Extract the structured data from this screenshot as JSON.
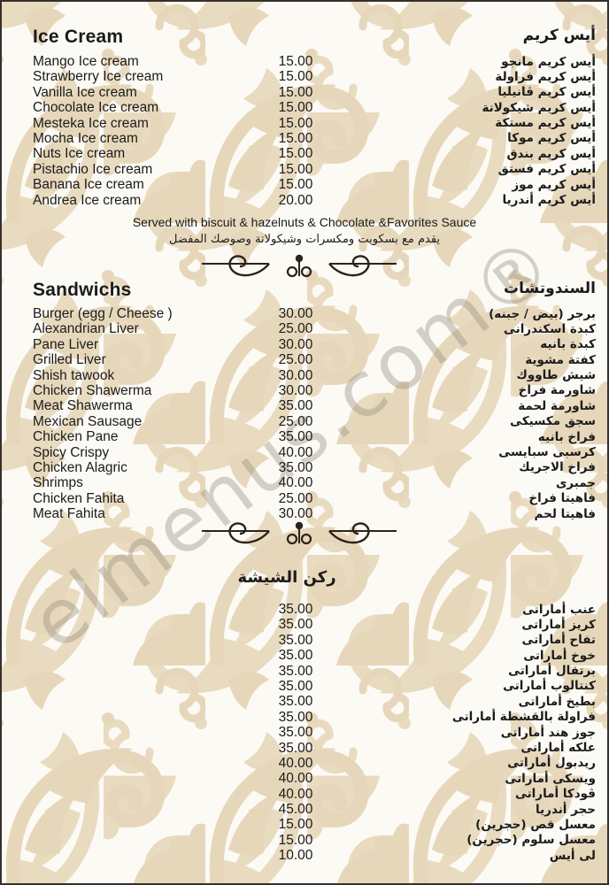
{
  "page": {
    "watermark": "elmenus.com®"
  },
  "colors": {
    "background": "#fcfaf5",
    "pattern_beige": "#e7d7ba",
    "text": "#1b1b1b",
    "ornament": "#2b231b",
    "watermark_gray": "#968e82"
  },
  "menu": {
    "sections": [
      {
        "key": "ice-cream",
        "title_en": "Ice Cream",
        "title_ar": "أيس كريم",
        "note_en": "Served with biscuit & hazelnuts & Chocolate &Favorites Sauce",
        "note_ar": "يقدم مع بسكويت ومكسرات وشيكولاتة وصوصك المفضل",
        "items": [
          {
            "en": "Mango Ice cream",
            "price": "15.00",
            "ar": "أيس كريم مانجو"
          },
          {
            "en": "Strawberry Ice cream",
            "price": "15.00",
            "ar": "أيس كريم فراولة"
          },
          {
            "en": "Vanilla Ice cream",
            "price": "15.00",
            "ar": "أيس كريم ڤانيليا"
          },
          {
            "en": "Chocolate Ice cream",
            "price": "15.00",
            "ar": "أيس كريم شيكولاتة"
          },
          {
            "en": "Mesteka Ice cream",
            "price": "15.00",
            "ar": "أيس كريم مستكة"
          },
          {
            "en": "Mocha Ice cream",
            "price": "15.00",
            "ar": "أيس كريم موكا"
          },
          {
            "en": "Nuts Ice cream",
            "price": "15.00",
            "ar": "أيس كريم بندق"
          },
          {
            "en": "Pistachio Ice cream",
            "price": "15.00",
            "ar": "أيس كريم فستق"
          },
          {
            "en": "Banana Ice cream",
            "price": "15.00",
            "ar": "أيس كريم موز"
          },
          {
            "en": "Andrea Ice cream",
            "price": "20.00",
            "ar": "أيس كريم أندريا"
          }
        ]
      },
      {
        "key": "sandwichs",
        "title_en": "Sandwichs",
        "title_ar": "السندوتشات",
        "items": [
          {
            "en": "Burger (egg / Cheese )",
            "price": "30.00",
            "ar": "برجر (بيض / جبنه)"
          },
          {
            "en": "Alexandrian Liver",
            "price": "25.00",
            "ar": "كبدة اسكندرانى"
          },
          {
            "en": "Pane Liver",
            "price": "30.00",
            "ar": "كبدة بانيه"
          },
          {
            "en": "Grilled Liver",
            "price": "25.00",
            "ar": "كفتة مشوية"
          },
          {
            "en": "Shish tawook",
            "price": "30.00",
            "ar": "شيش طاووك"
          },
          {
            "en": "Chicken Shawerma",
            "price": "30.00",
            "ar": "شاورمة فراخ"
          },
          {
            "en": "Meat Shawerma",
            "price": "35.00",
            "ar": "شاورمة لحمة"
          },
          {
            "en": "Mexican Sausage",
            "price": "25.00",
            "ar": "سجق مكسيكى"
          },
          {
            "en": "Chicken Pane",
            "price": "35.00",
            "ar": "فراخ بانيه"
          },
          {
            "en": "Spicy Crispy",
            "price": "40.00",
            "ar": "كرسبى سبايسى"
          },
          {
            "en": "Chicken Alagric",
            "price": "35.00",
            "ar": "فراخ الاجريك"
          },
          {
            "en": "Shrimps",
            "price": "40.00",
            "ar": "جمبرى"
          },
          {
            "en": "Chicken Fahita",
            "price": "25.00",
            "ar": "فاهيتا فراخ"
          },
          {
            "en": "Meat Fahita",
            "price": "30.00",
            "ar": "فاهيتا لحم"
          }
        ]
      },
      {
        "key": "shisha",
        "title_ar": "ركن الشيشة",
        "items": [
          {
            "en": "",
            "price": "35.00",
            "ar": "عنب أماراتى"
          },
          {
            "en": "",
            "price": "35.00",
            "ar": "كريز أماراتى"
          },
          {
            "en": "",
            "price": "35.00",
            "ar": "تفاح أماراتى"
          },
          {
            "en": "",
            "price": "35.00",
            "ar": "خوخ أماراتى"
          },
          {
            "en": "",
            "price": "35.00",
            "ar": "برتقال أماراتى"
          },
          {
            "en": "",
            "price": "35.00",
            "ar": "كنتالوب أماراتى"
          },
          {
            "en": "",
            "price": "35.00",
            "ar": "بطيخ أماراتى"
          },
          {
            "en": "",
            "price": "35.00",
            "ar": "فراولة بالقشطة أماراتى"
          },
          {
            "en": "",
            "price": "35.00",
            "ar": "جوز هند أماراتى"
          },
          {
            "en": "",
            "price": "35.00",
            "ar": "علكه أماراتى"
          },
          {
            "en": "",
            "price": "40.00",
            "ar": "ريدبول أماراتى"
          },
          {
            "en": "",
            "price": "40.00",
            "ar": "ويسكى أماراتى"
          },
          {
            "en": "",
            "price": "40.00",
            "ar": "ڤودكا أماراتى"
          },
          {
            "en": "",
            "price": "45.00",
            "ar": "حجر أندريا"
          },
          {
            "en": "",
            "price": "15.00",
            "ar": "معسل قص (حجرين)"
          },
          {
            "en": "",
            "price": "15.00",
            "ar": "معسل سلوم (حجرين)"
          },
          {
            "en": "",
            "price": "10.00",
            "ar": "لى أيس"
          }
        ]
      }
    ]
  }
}
